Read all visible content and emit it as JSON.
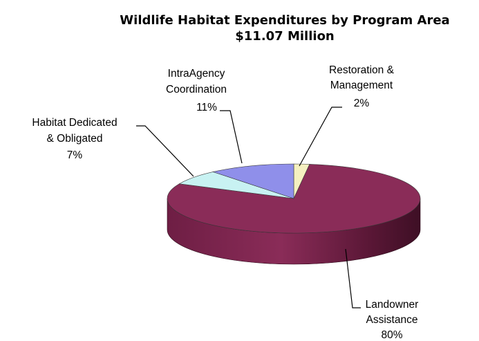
{
  "chart_data": {
    "type": "pie",
    "title": "Wildlife Habitat Expenditures by Program Area",
    "subtitle": "$11.07 Million",
    "slices": [
      {
        "label_lines": [
          "Restoration &",
          "Management"
        ],
        "percent_label": "2%",
        "value": 2,
        "color": "#f5f0c0"
      },
      {
        "label_lines": [
          "Landowner",
          "Assistance"
        ],
        "percent_label": "80%",
        "value": 80,
        "color": "#8a2c58"
      },
      {
        "label_lines": [
          "Habitat Dedicated",
          "& Obligated"
        ],
        "percent_label": "7%",
        "value": 7,
        "color": "#c8f2f2"
      },
      {
        "label_lines": [
          "IntraAgency",
          "Coordination"
        ],
        "percent_label": "11%",
        "value": 11,
        "color": "#8f8fea"
      }
    ]
  }
}
